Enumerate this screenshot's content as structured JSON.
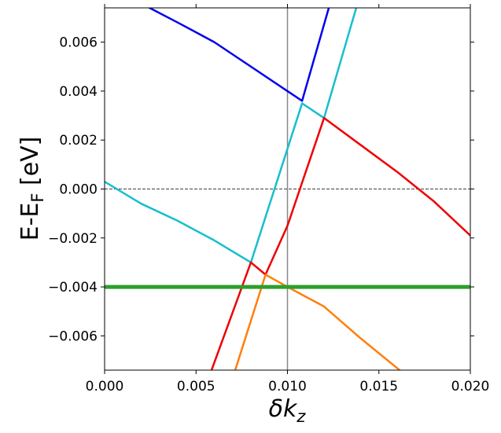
{
  "chart_data": {
    "type": "line",
    "x_label": "δk",
    "x_label_sub": "z",
    "y_label": "E-E",
    "y_label_sub": "F",
    "y_label_end": " [eV]",
    "xlim": [
      0,
      0.02
    ],
    "ylim": [
      -0.0074,
      0.0074
    ],
    "xticks": [
      {
        "value": 0,
        "label": "0.000"
      },
      {
        "value": 0.005,
        "label": "0.005"
      },
      {
        "value": 0.01,
        "label": "0.010"
      },
      {
        "value": 0.015,
        "label": "0.015"
      },
      {
        "value": 0.02,
        "label": "0.020"
      }
    ],
    "yticks": [
      {
        "value": -0.006,
        "label": "−0.006"
      },
      {
        "value": -0.004,
        "label": "−0.004"
      },
      {
        "value": -0.002,
        "label": "−0.002"
      },
      {
        "value": 0,
        "label": "0.000"
      },
      {
        "value": 0.002,
        "label": "0.002"
      },
      {
        "value": 0.004,
        "label": "0.004"
      },
      {
        "value": 0.006,
        "label": "0.006"
      }
    ],
    "vline": 0.01,
    "hline": 0,
    "series": [
      {
        "color": "#0000ee",
        "width": 2.5,
        "x": [
          0.0022,
          0.004,
          0.006,
          0.008,
          0.01,
          0.0108,
          0.0123
        ],
        "values": [
          0.0075,
          0.0068,
          0.006,
          0.005,
          0.004,
          0.0036,
          0.0075
        ]
      },
      {
        "color": "#17becf",
        "width": 2.5,
        "x": [
          0,
          0.002,
          0.004,
          0.006,
          0.008,
          0.0108,
          0.012,
          0.0138
        ],
        "values": [
          0.0003,
          -0.0006,
          -0.0013,
          -0.0021,
          -0.003,
          0.0035,
          0.0029,
          0.0075
        ]
      },
      {
        "color": "#ee0000",
        "width": 2.5,
        "x": [
          0.0058,
          0.008,
          0.0088,
          0.01,
          0.012,
          0.014,
          0.016,
          0.018,
          0.02
        ],
        "values": [
          -0.0075,
          -0.003,
          -0.0035,
          -0.0015,
          0.0029,
          0.0018,
          0.0007,
          -0.0005,
          -0.0019
        ]
      },
      {
        "color": "#ff7f0e",
        "width": 2.5,
        "x": [
          0.0071,
          0.0088,
          0.01,
          0.012,
          0.014,
          0.0163
        ],
        "values": [
          -0.0075,
          -0.0035,
          -0.004,
          -0.0048,
          -0.0061,
          -0.0075
        ]
      },
      {
        "color": "#2ca02c",
        "width": 5,
        "x": [
          0,
          0.02
        ],
        "values": [
          -0.004,
          -0.004
        ]
      }
    ]
  }
}
